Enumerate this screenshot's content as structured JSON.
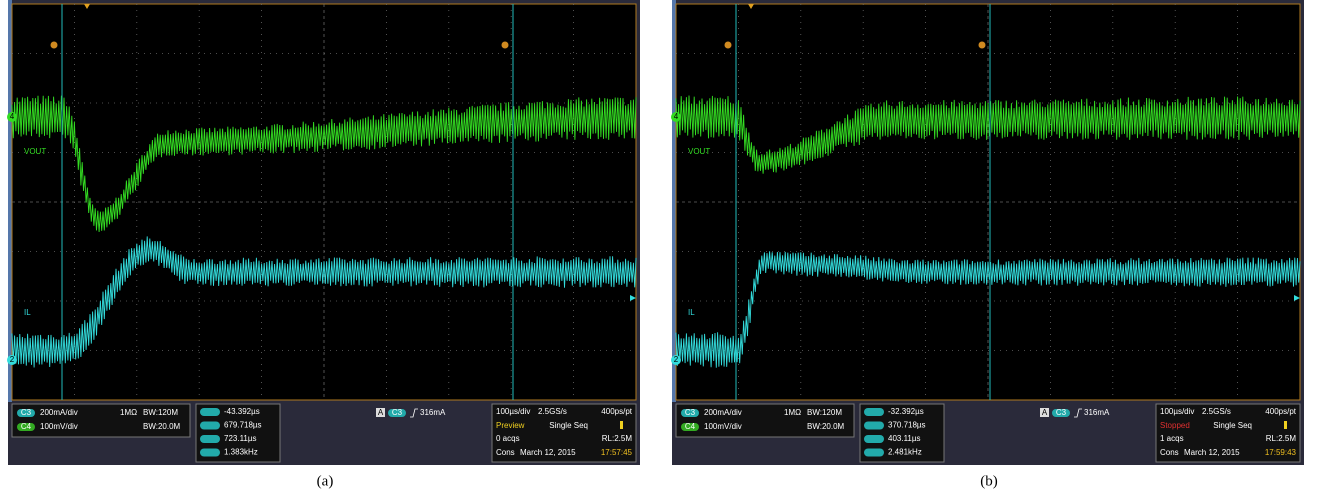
{
  "panels": [
    {
      "caption": "(a)",
      "vout_label": "VOUT",
      "il_label": "IL",
      "ch_markers": [
        "4",
        "2"
      ],
      "channels": [
        {
          "name": "C3",
          "scale": "200mA/div",
          "impedance": "1MΩ",
          "bw": "BW:120M"
        },
        {
          "name": "C4",
          "scale": "100mV/div",
          "bw": "BW:20.0M"
        }
      ],
      "cursors": [
        "-43.392µs",
        "679.718µs",
        "723.11µs",
        "1.383kHz"
      ],
      "trigger": {
        "source": "A",
        "channel": "C3",
        "level": "316mA"
      },
      "acquisition": {
        "timebase": "100µs/div",
        "rate": "2.5GS/s",
        "resolution": "400ps/pt",
        "state": "Preview",
        "mode": "Single Seq",
        "count": "0 acqs",
        "record": "RL:2.5M",
        "label": "Cons",
        "date": "March 12, 2015",
        "time": "17:57:45"
      }
    },
    {
      "caption": "(b)",
      "vout_label": "VOUT",
      "il_label": "IL",
      "ch_markers": [
        "4",
        "2"
      ],
      "channels": [
        {
          "name": "C3",
          "scale": "200mA/div",
          "impedance": "1MΩ",
          "bw": "BW:120M"
        },
        {
          "name": "C4",
          "scale": "100mV/div",
          "bw": "BW:20.0M"
        }
      ],
      "cursors": [
        "-32.392µs",
        "370.718µs",
        "403.11µs",
        "2.481kHz"
      ],
      "trigger": {
        "source": "A",
        "channel": "C3",
        "level": "316mA"
      },
      "acquisition": {
        "timebase": "100µs/div",
        "rate": "2.5GS/s",
        "resolution": "400ps/pt",
        "state": "Stopped",
        "mode": "Single Seq",
        "count": "1 acqs",
        "record": "RL:2.5M",
        "label": "Cons",
        "date": "March 12, 2015",
        "time": "17:59:43"
      }
    }
  ]
}
